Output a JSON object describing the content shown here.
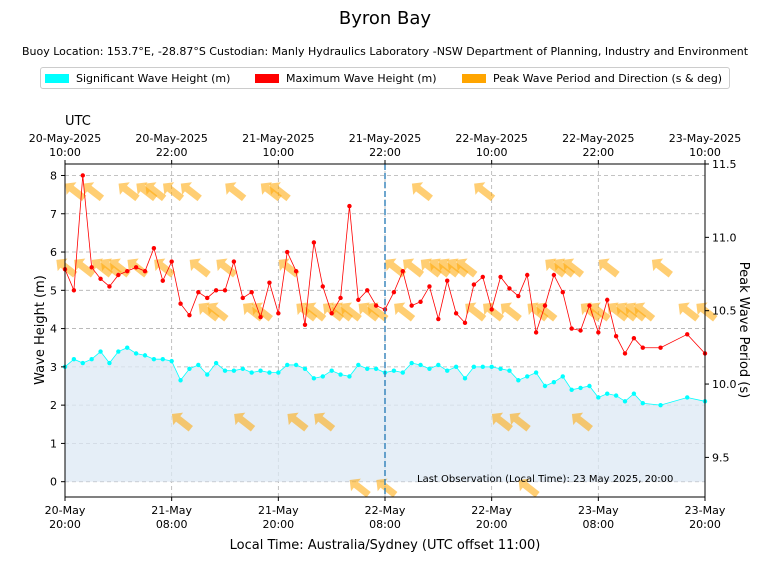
{
  "title": "Byron Bay",
  "subtitle": "Buoy Location: 153.7°E, -28.87°S     Custodian: Manly Hydraulics Laboratory -NSW Department of Planning, Industry and Environment",
  "legend": [
    {
      "label": "Significant Wave Height (m)",
      "color": "#00ffff"
    },
    {
      "label": "Maximum Wave Height (m)",
      "color": "#ff0000"
    },
    {
      "label": "Peak Wave Period and Direction (s & deg)",
      "color": "#ffa500"
    }
  ],
  "chart_data": {
    "type": "line",
    "title": "Byron Bay",
    "xlabel": "Local Time: Australia/Sydney (UTC offset 11:00)",
    "ylabel": "Wave Height (m)",
    "y2label": "Peak Wave Period (s)",
    "top_axis_label": "UTC",
    "xlim": [
      0,
      72
    ],
    "ylim": [
      -0.4,
      8.3
    ],
    "y2lim": [
      9.23,
      11.5
    ],
    "yticks": [
      0,
      1,
      2,
      3,
      4,
      5,
      6,
      7,
      8
    ],
    "y2ticks": [
      9.5,
      10.0,
      10.5,
      11.0,
      11.5
    ],
    "xticks_local": [
      {
        "x": 0,
        "line1": "20-May",
        "line2": "20:00"
      },
      {
        "x": 12,
        "line1": "21-May",
        "line2": "08:00"
      },
      {
        "x": 24,
        "line1": "21-May",
        "line2": "20:00"
      },
      {
        "x": 36,
        "line1": "22-May",
        "line2": "08:00"
      },
      {
        "x": 48,
        "line1": "22-May",
        "line2": "20:00"
      },
      {
        "x": 60,
        "line1": "23-May",
        "line2": "08:00"
      },
      {
        "x": 72,
        "line1": "23-May",
        "line2": "20:00"
      }
    ],
    "xticks_utc": [
      {
        "x": 0,
        "line1": "20-May-2025",
        "line2": "10:00"
      },
      {
        "x": 12,
        "line1": "20-May-2025",
        "line2": "22:00"
      },
      {
        "x": 24,
        "line1": "21-May-2025",
        "line2": "10:00"
      },
      {
        "x": 36,
        "line1": "21-May-2025",
        "line2": "22:00"
      },
      {
        "x": 48,
        "line1": "22-May-2025",
        "line2": "10:00"
      },
      {
        "x": 60,
        "line1": "22-May-2025",
        "line2": "22:00"
      },
      {
        "x": 72,
        "line1": "23-May-2025",
        "line2": "10:00"
      }
    ],
    "annotation": "Last Observation (Local Time): 23 May 2025, 20:00",
    "current_time_x": 36,
    "series": [
      {
        "name": "Significant Wave Height (m)",
        "color": "#00ffff",
        "x": [
          0,
          1,
          2,
          3,
          4,
          5,
          6,
          7,
          8,
          9,
          10,
          11,
          12,
          13,
          14,
          15,
          16,
          17,
          18,
          19,
          20,
          21,
          22,
          23,
          24,
          25,
          26,
          27,
          28,
          29,
          30,
          31,
          32,
          33,
          34,
          35,
          36,
          37,
          38,
          39,
          40,
          41,
          42,
          43,
          44,
          45,
          46,
          47,
          48,
          49,
          50,
          51,
          52,
          53,
          54,
          55,
          56,
          57,
          58,
          59,
          60,
          61,
          62,
          63,
          64,
          65,
          67,
          70,
          72
        ],
        "values": [
          3.0,
          3.2,
          3.1,
          3.2,
          3.4,
          3.1,
          3.4,
          3.5,
          3.35,
          3.3,
          3.2,
          3.2,
          3.15,
          2.65,
          2.95,
          3.05,
          2.8,
          3.1,
          2.9,
          2.9,
          2.95,
          2.85,
          2.9,
          2.85,
          2.85,
          3.05,
          3.05,
          2.95,
          2.7,
          2.75,
          2.9,
          2.8,
          2.75,
          3.05,
          2.95,
          2.95,
          2.85,
          2.9,
          2.85,
          3.1,
          3.05,
          2.95,
          3.05,
          2.9,
          3.0,
          2.7,
          3.0,
          3.0,
          3.0,
          2.95,
          2.9,
          2.65,
          2.75,
          2.85,
          2.5,
          2.6,
          2.75,
          2.4,
          2.45,
          2.5,
          2.2,
          2.3,
          2.25,
          2.1,
          2.3,
          2.05,
          2.0,
          2.2,
          2.1
        ]
      },
      {
        "name": "Maximum Wave Height (m)",
        "color": "#ff0000",
        "x": [
          0,
          1,
          2,
          3,
          4,
          5,
          6,
          7,
          8,
          9,
          10,
          11,
          12,
          13,
          14,
          15,
          16,
          17,
          18,
          19,
          20,
          21,
          22,
          23,
          24,
          25,
          26,
          27,
          28,
          29,
          30,
          31,
          32,
          33,
          34,
          35,
          36,
          37,
          38,
          39,
          40,
          41,
          42,
          43,
          44,
          45,
          46,
          47,
          48,
          49,
          50,
          51,
          52,
          53,
          54,
          55,
          56,
          57,
          58,
          59,
          60,
          61,
          62,
          63,
          64,
          65,
          67,
          70,
          72
        ],
        "values": [
          5.55,
          5.0,
          8.0,
          5.6,
          5.3,
          5.1,
          5.4,
          5.5,
          5.6,
          5.5,
          6.1,
          5.25,
          5.75,
          4.65,
          4.35,
          4.95,
          4.8,
          5.0,
          5.0,
          5.75,
          4.8,
          4.95,
          4.3,
          5.2,
          4.4,
          6.0,
          5.5,
          4.1,
          6.25,
          5.1,
          4.4,
          4.8,
          7.2,
          4.75,
          5.0,
          4.6,
          4.5,
          4.95,
          5.5,
          4.6,
          4.7,
          5.1,
          4.25,
          5.25,
          4.4,
          4.15,
          5.15,
          5.35,
          4.5,
          5.35,
          5.05,
          4.85,
          5.4,
          3.9,
          4.6,
          5.4,
          4.95,
          4.0,
          3.95,
          4.6,
          3.9,
          4.75,
          3.8,
          3.35,
          3.75,
          3.5,
          3.5,
          3.85,
          3.35
        ]
      },
      {
        "name": "Peak Wave Period and Direction (s & deg)",
        "color": "#ffa500",
        "x": [
          0,
          1,
          2,
          3,
          4,
          5,
          6,
          7,
          8,
          9,
          10,
          11,
          12,
          13,
          14,
          15,
          16,
          17,
          18,
          19,
          20,
          21,
          22,
          23,
          24,
          25,
          26,
          27,
          28,
          29,
          30,
          31,
          32,
          33,
          34,
          35,
          36,
          37,
          38,
          39,
          40,
          41,
          42,
          43,
          44,
          45,
          46,
          47,
          48,
          49,
          50,
          51,
          52,
          53,
          54,
          55,
          56,
          57,
          58,
          59,
          60,
          61,
          62,
          63,
          64,
          65,
          67,
          70,
          72
        ],
        "values": [
          10.8,
          11.32,
          10.8,
          11.32,
          10.8,
          10.8,
          10.8,
          11.32,
          10.8,
          11.32,
          11.32,
          10.8,
          11.32,
          9.75,
          11.32,
          10.8,
          10.5,
          10.5,
          10.8,
          11.32,
          9.75,
          10.5,
          10.5,
          11.32,
          11.32,
          10.8,
          9.75,
          10.5,
          10.5,
          9.75,
          10.5,
          10.5,
          10.5,
          9.3,
          10.5,
          10.5,
          9.3,
          10.8,
          10.5,
          10.8,
          11.32,
          10.8,
          10.8,
          10.8,
          10.8,
          10.8,
          10.5,
          11.32,
          10.5,
          9.75,
          10.5,
          9.75,
          9.3,
          10.5,
          10.5,
          10.8,
          10.8,
          10.8,
          9.75,
          10.5,
          10.5,
          10.8,
          10.5,
          10.5,
          10.5,
          10.5,
          10.8,
          10.5,
          10.5
        ]
      }
    ]
  }
}
